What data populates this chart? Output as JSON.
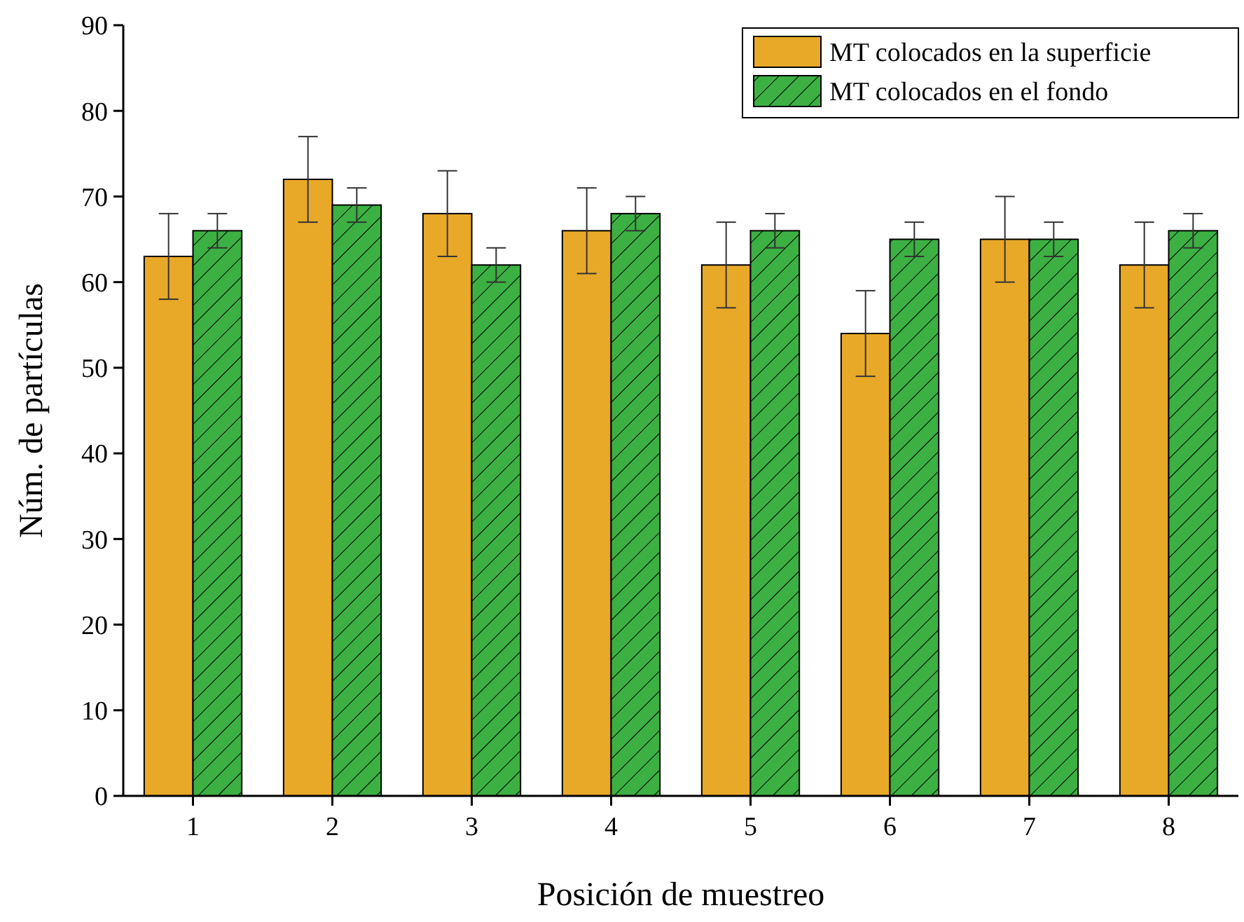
{
  "chart_data": {
    "type": "bar",
    "xlabel": "Posición de muestreo",
    "ylabel": "Núm. de partículas",
    "categories": [
      "1",
      "2",
      "3",
      "4",
      "5",
      "6",
      "7",
      "8"
    ],
    "series": [
      {
        "name": "MT colocados en la superficie",
        "color": "#e8a928",
        "values": [
          63,
          72,
          68,
          66,
          62,
          54,
          65,
          62
        ],
        "errors": [
          5,
          5,
          5,
          5,
          5,
          5,
          5,
          5
        ]
      },
      {
        "name": "MT colocados en el fondo",
        "color": "#3cb043",
        "values": [
          66,
          69,
          62,
          68,
          66,
          65,
          65,
          66
        ],
        "errors": [
          2,
          2,
          2,
          2,
          2,
          2,
          2,
          2
        ]
      }
    ],
    "ylim": [
      0,
      90
    ],
    "yticks": [
      0,
      10,
      20,
      30,
      40,
      50,
      60,
      70,
      80,
      90
    ],
    "legend": "top right",
    "grid": false
  }
}
